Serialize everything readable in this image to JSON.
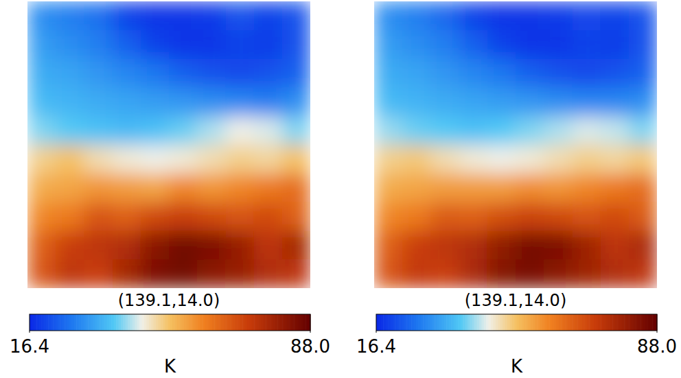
{
  "chart_data": [
    {
      "type": "heatmap",
      "title": "(139.1,14.0)",
      "cells": [
        [
          30,
          28,
          26,
          20,
          18,
          18,
          19,
          22,
          20,
          22
        ],
        [
          32,
          30,
          28,
          24,
          20,
          18,
          18,
          20,
          19,
          22
        ],
        [
          34,
          33,
          31,
          29,
          27,
          24,
          22,
          21,
          22,
          24
        ],
        [
          36,
          35,
          34,
          33,
          32,
          31,
          30,
          29,
          28,
          30
        ],
        [
          40,
          38,
          37,
          36,
          37,
          39,
          42,
          45,
          44,
          40
        ],
        [
          50,
          52,
          48,
          46,
          45,
          46,
          48,
          50,
          49,
          52
        ],
        [
          55,
          56,
          58,
          57,
          56,
          60,
          58,
          60,
          62,
          64
        ],
        [
          60,
          62,
          68,
          66,
          70,
          72,
          70,
          68,
          70,
          66
        ],
        [
          66,
          72,
          74,
          76,
          82,
          86,
          84,
          80,
          74,
          78
        ],
        [
          68,
          74,
          72,
          78,
          84,
          86,
          82,
          80,
          76,
          74
        ]
      ],
      "color_range": [
        16.4,
        88.0
      ],
      "color_ticks": [
        16.4,
        {
          "value": 88.0,
          "label": "88.0"
        }
      ],
      "color_label": "K"
    },
    {
      "type": "heatmap",
      "title": "(139.1,14.0)",
      "cells": [
        [
          30,
          28,
          25,
          20,
          18,
          18,
          19,
          21,
          20,
          22
        ],
        [
          32,
          30,
          28,
          24,
          20,
          18,
          18,
          20,
          19,
          22
        ],
        [
          34,
          33,
          31,
          29,
          27,
          24,
          22,
          21,
          22,
          24
        ],
        [
          36,
          35,
          34,
          33,
          32,
          31,
          30,
          29,
          29,
          30
        ],
        [
          41,
          39,
          38,
          37,
          38,
          40,
          42,
          44,
          43,
          40
        ],
        [
          50,
          51,
          48,
          46,
          45,
          46,
          48,
          50,
          49,
          51
        ],
        [
          55,
          56,
          57,
          57,
          57,
          59,
          58,
          60,
          62,
          64
        ],
        [
          60,
          62,
          67,
          66,
          69,
          71,
          70,
          68,
          70,
          67
        ],
        [
          66,
          72,
          74,
          76,
          81,
          85,
          84,
          79,
          74,
          77
        ],
        [
          68,
          73,
          72,
          77,
          83,
          85,
          82,
          79,
          76,
          74
        ]
      ],
      "color_range": [
        16.4,
        88.0
      ],
      "color_ticks": [
        16.4,
        {
          "value": 88.0,
          "label": "88.0"
        }
      ],
      "color_label": "K"
    }
  ]
}
